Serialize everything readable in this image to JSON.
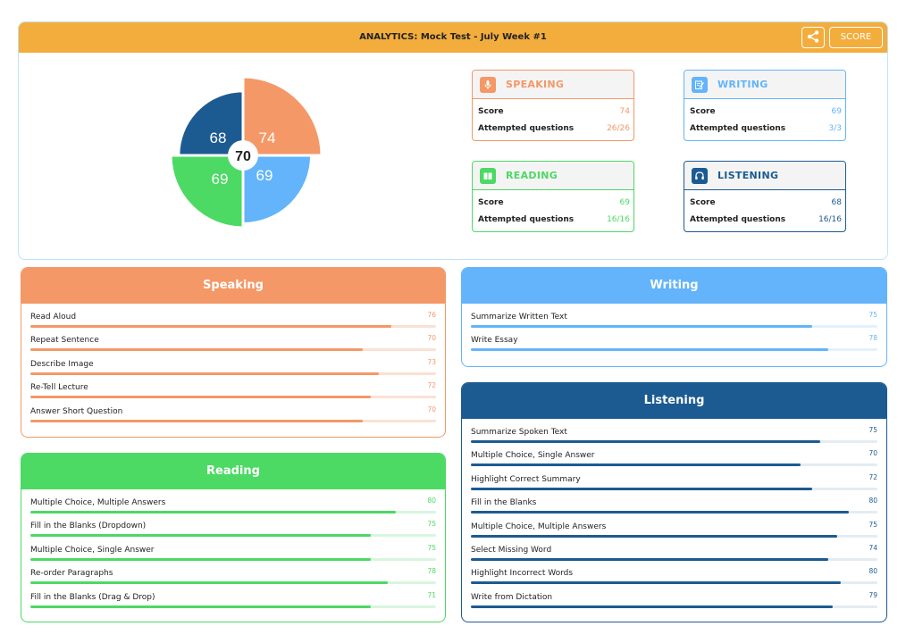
{
  "header": {
    "title": "ANALYTICS: Mock Test - July Week #1",
    "score_label": "SCORE",
    "share_icon": "share-icon"
  },
  "overall": {
    "score": "70",
    "quadrants": [
      {
        "name": "speaking",
        "value": "74",
        "color": "#f49867",
        "fraction": 1.0
      },
      {
        "name": "listening",
        "value": "68",
        "color": "#1c5b91",
        "fraction": 0.82
      },
      {
        "name": "reading",
        "value": "69",
        "color": "#4cd964",
        "fraction": 0.92
      },
      {
        "name": "writing",
        "value": "69",
        "color": "#63b4fa",
        "fraction": 0.87
      }
    ]
  },
  "stats": [
    {
      "key": "speaking",
      "title": "SPEAKING",
      "icon": "microphone-icon",
      "color": "#f49867",
      "score_label": "Score",
      "score": "74",
      "attempted_label": "Attempted questions",
      "attempted": "26/26"
    },
    {
      "key": "writing",
      "title": "WRITING",
      "icon": "pencil-note-icon",
      "color": "#63b4fa",
      "score_label": "Score",
      "score": "69",
      "attempted_label": "Attempted questions",
      "attempted": "3/3"
    },
    {
      "key": "reading",
      "title": "READING",
      "icon": "book-icon",
      "color": "#4cd964",
      "score_label": "Score",
      "score": "69",
      "attempted_label": "Attempted questions",
      "attempted": "16/16"
    },
    {
      "key": "listening",
      "title": "LISTENING",
      "icon": "headphones-icon",
      "color": "#1c5b91",
      "score_label": "Score",
      "score": "68",
      "attempted_label": "Attempted questions",
      "attempted": "16/16"
    }
  ],
  "speaking": {
    "title": "Speaking",
    "color": "#f49867",
    "track": "#fbe1d3",
    "items": [
      {
        "label": "Read Aloud",
        "value": "76",
        "fraction": 0.89
      },
      {
        "label": "Repeat Sentence",
        "value": "70",
        "fraction": 0.82
      },
      {
        "label": "Describe Image",
        "value": "73",
        "fraction": 0.86
      },
      {
        "label": "Re-Tell Lecture",
        "value": "72",
        "fraction": 0.84
      },
      {
        "label": "Answer Short Question",
        "value": "70",
        "fraction": 0.82
      }
    ]
  },
  "writing": {
    "title": "Writing",
    "color": "#63b4fa",
    "track": "#e3f1fd",
    "items": [
      {
        "label": "Summarize Written Text",
        "value": "75",
        "fraction": 0.84
      },
      {
        "label": "Write Essay",
        "value": "78",
        "fraction": 0.88
      }
    ]
  },
  "reading": {
    "title": "Reading",
    "color": "#4cd964",
    "track": "#d8f6de",
    "items": [
      {
        "label": "Multiple Choice, Multiple Answers",
        "value": "80",
        "fraction": 0.9
      },
      {
        "label": "Fill in the Blanks (Dropdown)",
        "value": "75",
        "fraction": 0.84
      },
      {
        "label": "Multiple Choice, Single Answer",
        "value": "75",
        "fraction": 0.84
      },
      {
        "label": "Re-order Paragraphs",
        "value": "78",
        "fraction": 0.88
      },
      {
        "label": "Fill in the Blanks (Drag & Drop)",
        "value": "71",
        "fraction": 0.84
      }
    ]
  },
  "listening": {
    "title": "Listening",
    "color": "#1c5b91",
    "track": "#e4ecf3",
    "items": [
      {
        "label": "Summarize Spoken Text",
        "value": "75",
        "fraction": 0.86
      },
      {
        "label": "Multiple Choice, Single Answer",
        "value": "70",
        "fraction": 0.81
      },
      {
        "label": "Highlight Correct Summary",
        "value": "72",
        "fraction": 0.84
      },
      {
        "label": "Fill in the Blanks",
        "value": "80",
        "fraction": 0.93
      },
      {
        "label": "Multiple Choice, Multiple Answers",
        "value": "75",
        "fraction": 0.9
      },
      {
        "label": "Select Missing Word",
        "value": "74",
        "fraction": 0.88
      },
      {
        "label": "Highlight Incorrect Words",
        "value": "80",
        "fraction": 0.91
      },
      {
        "label": "Write from Dictation",
        "value": "79",
        "fraction": 0.89
      }
    ]
  }
}
